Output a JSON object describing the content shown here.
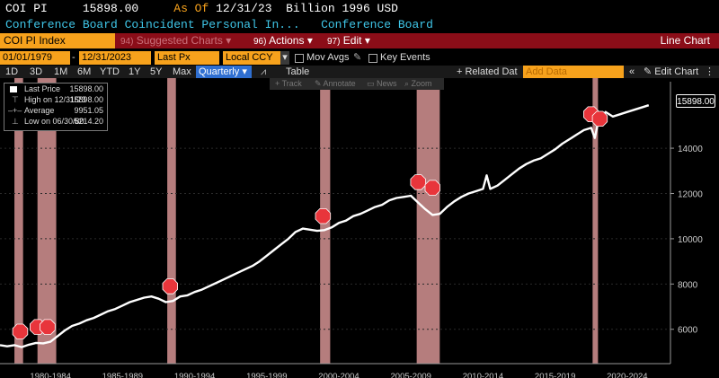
{
  "header": {
    "ticker": "COI PI",
    "value": "15898.00",
    "asof_label": "As Of",
    "asof_date": "12/31/23",
    "units": "Billion 1996 USD",
    "description": "Conference Board Coincident Personal In...",
    "source": "Conference Board"
  },
  "menubar": {
    "index": "COI PI Index",
    "suggested_num": "94)",
    "suggested": "Suggested Charts",
    "actions_num": "96)",
    "actions": "Actions",
    "edit_num": "97)",
    "edit": "Edit",
    "view_title": "Line Chart"
  },
  "controls": {
    "start_date": "01/01/1979",
    "end_date": "12/31/2023",
    "field": "Last Px",
    "currency": "Local CCY",
    "mov_avgs": "Mov Avgs",
    "key_events": "Key Events"
  },
  "toolbar": {
    "periods": [
      "1D",
      "3D",
      "1M",
      "6M",
      "YTD",
      "1Y",
      "5Y",
      "Max"
    ],
    "frequency": "Quarterly",
    "table": "Table",
    "related": "+ Related Dat",
    "add_data": "Add Data",
    "edit_chart": "Edit Chart"
  },
  "chart_tools": [
    "Track",
    "Annotate",
    "News",
    "Zoom"
  ],
  "legend": {
    "items": [
      {
        "label": "Last Price",
        "value": "15898.00"
      },
      {
        "label": "High on 12/31/23",
        "value": "15898.00"
      },
      {
        "label": "Average",
        "value": "9951.05"
      },
      {
        "label": "Low on 06/30/80",
        "value": "5214.20"
      }
    ]
  },
  "last_value_label": "15898.00",
  "colors": {
    "amber": "#f7a21c",
    "header_cyan": "#3fc6e8",
    "menu_red": "#8b0d18",
    "recession_band": "#f2a7a7",
    "line": "#ffffff"
  },
  "chart_data": {
    "type": "line",
    "title": "",
    "xlabel": "",
    "ylabel": "",
    "x_tick_labels": [
      "1980-1984",
      "1985-1989",
      "1990-1994",
      "1995-1999",
      "2000-2004",
      "2005-2009",
      "2010-2014",
      "2015-2019",
      "2020-2024"
    ],
    "y_ticks": [
      6000,
      8000,
      10000,
      12000,
      14000
    ],
    "ylim": [
      4800,
      16700
    ],
    "xlim": [
      1979.0,
      2025.5
    ],
    "recession_shading": [
      [
        1980.0,
        1980.6
      ],
      [
        1981.6,
        1982.9
      ],
      [
        1990.6,
        1991.2
      ],
      [
        2001.2,
        2001.9
      ],
      [
        2007.9,
        2009.5
      ],
      [
        2020.1,
        2020.4
      ]
    ],
    "recession_markers": [
      {
        "x": 1980.4,
        "y": 5900
      },
      {
        "x": 1981.6,
        "y": 6100
      },
      {
        "x": 1982.3,
        "y": 6100
      },
      {
        "x": 1990.8,
        "y": 7900
      },
      {
        "x": 2001.4,
        "y": 11000
      },
      {
        "x": 2008.0,
        "y": 12500
      },
      {
        "x": 2009.0,
        "y": 12250
      },
      {
        "x": 2020.0,
        "y": 15500
      },
      {
        "x": 2020.6,
        "y": 15300
      }
    ],
    "series": [
      {
        "x": [
          1979.0,
          1979.5,
          1980.0,
          1980.5,
          1981.0,
          1981.5,
          1982.0,
          1982.5,
          1983.0,
          1983.5,
          1984.0,
          1984.5,
          1985.0,
          1985.5,
          1986.0,
          1986.5,
          1987.0,
          1987.5,
          1988.0,
          1988.5,
          1989.0,
          1989.5,
          1990.0,
          1990.5,
          1991.0,
          1991.5,
          1992.0,
          1992.5,
          1993.0,
          1993.5,
          1994.0,
          1994.5,
          1995.0,
          1995.5,
          1996.0,
          1996.5,
          1997.0,
          1997.5,
          1998.0,
          1998.5,
          1999.0,
          1999.5,
          2000.0,
          2000.5,
          2001.0,
          2001.5,
          2002.0,
          2002.5,
          2003.0,
          2003.5,
          2004.0,
          2004.5,
          2005.0,
          2005.5,
          2006.0,
          2006.5,
          2007.0,
          2007.5,
          2008.0,
          2008.5,
          2009.0,
          2009.5,
          2010.0,
          2010.5,
          2011.0,
          2011.5,
          2012.0,
          2012.5,
          2012.75,
          2013.0,
          2013.5,
          2014.0,
          2014.5,
          2015.0,
          2015.5,
          2016.0,
          2016.5,
          2017.0,
          2017.5,
          2018.0,
          2018.5,
          2019.0,
          2019.5,
          2020.0,
          2020.25,
          2020.5,
          2021.0,
          2021.5,
          2022.0,
          2022.5,
          2023.0,
          2023.5,
          2023.99
        ],
        "values": [
          5300,
          5250,
          5300,
          5214,
          5320,
          5400,
          5380,
          5450,
          5700,
          5950,
          6150,
          6250,
          6400,
          6500,
          6650,
          6800,
          6900,
          7050,
          7200,
          7300,
          7400,
          7450,
          7350,
          7200,
          7250,
          7450,
          7500,
          7650,
          7750,
          7900,
          8050,
          8200,
          8350,
          8500,
          8650,
          8800,
          9000,
          9250,
          9500,
          9750,
          10000,
          10300,
          10450,
          10400,
          10350,
          10380,
          10500,
          10700,
          10800,
          11000,
          11100,
          11250,
          11400,
          11500,
          11700,
          11800,
          11850,
          11900,
          11600,
          11300,
          11050,
          11100,
          11400,
          11650,
          11850,
          12000,
          12100,
          12200,
          12800,
          12200,
          12350,
          12600,
          12850,
          13100,
          13300,
          13450,
          13550,
          13750,
          13950,
          14200,
          14400,
          14600,
          14800,
          14900,
          14450,
          15200,
          15600,
          15400,
          15500,
          15600,
          15700,
          15800,
          15898
        ]
      }
    ]
  }
}
